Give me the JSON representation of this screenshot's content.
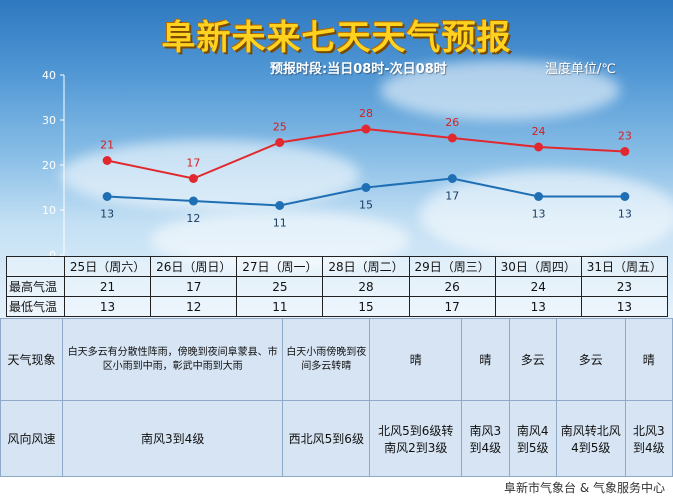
{
  "title": "阜新未来七天天气预报",
  "subtitle": "预报时段:当日08时-次日08时",
  "unit_label": "温度单位/℃",
  "chart_data": {
    "type": "line",
    "categories": [
      "25日（周六）",
      "26日（周日）",
      "27日（周一）",
      "28日（周二）",
      "29日（周三）",
      "30日（周四）",
      "31日（周五）"
    ],
    "series": [
      {
        "name": "最高气温",
        "values": [
          21,
          17,
          25,
          28,
          26,
          24,
          23
        ],
        "color": "#e0282e"
      },
      {
        "name": "最低气温",
        "values": [
          13,
          12,
          11,
          15,
          17,
          13,
          13
        ],
        "color": "#1f6fb5"
      }
    ],
    "ylim": [
      0,
      40
    ],
    "yticks": [
      0,
      10,
      20,
      30,
      40
    ]
  },
  "table": {
    "high_label": "最高气温",
    "low_label": "最低气温"
  },
  "details": {
    "phenomenon_label": "天气现象",
    "wind_label": "风向风速",
    "phenomena": [
      "白天多云有分散性阵雨，傍晚到夜间阜蒙县、市区小雨到中雨，彰武中雨到大雨",
      "白天小雨傍晚到夜间多云转晴",
      "晴",
      "晴",
      "多云",
      "多云",
      "晴"
    ],
    "winds": [
      "南风3到4级",
      "西北风5到6级",
      "北风5到6级转南风2到3级",
      "南风3到4级",
      "南风4到5级",
      "南风转北风4到5级",
      "北风3到4级"
    ]
  },
  "footer": "阜新市气象台 & 气象服务中心"
}
